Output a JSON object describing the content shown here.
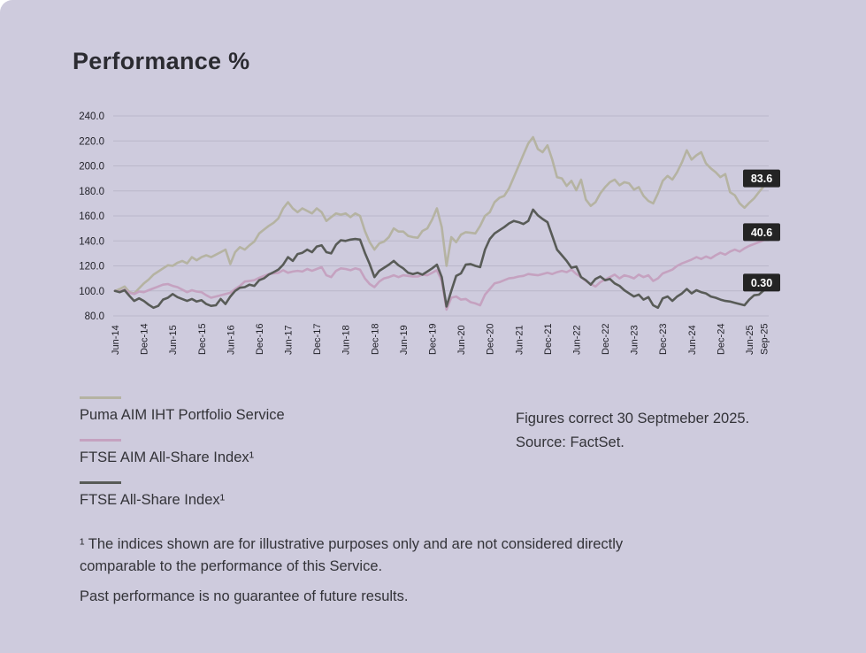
{
  "title": "Performance %",
  "notes": {
    "line1": "Figures correct 30 Septmeber 2025.",
    "line2": "Source: FactSet."
  },
  "footnotes": {
    "indices": "¹ The indices shown are for illustrative purposes only and are not considered directly comparable to the performance of this Service.",
    "past": "Past performance is no guarantee of future results."
  },
  "colors": {
    "background": "#cecbdd",
    "gridline": "#bab7ca",
    "axis_text": "#1f1f26",
    "end_label_bg": "#242424",
    "end_label_text": "#ffffff"
  },
  "chart_data": {
    "type": "line",
    "title": "Performance %",
    "grid": true,
    "legend_position": "below-left",
    "ylim": [
      80,
      240
    ],
    "y_ticks": [
      240,
      220,
      200,
      180,
      160,
      140,
      120,
      100,
      80
    ],
    "y_tick_labels": [
      "240.0",
      "220.0",
      "200.0",
      "180.0",
      "160.0",
      "140.0",
      "120.0",
      "100.0",
      "80.0"
    ],
    "x_start": "Jun-14",
    "x_end": "Sep-25",
    "x_ticks": [
      {
        "label": "Jun-14",
        "m": 0
      },
      {
        "label": "Dec-14",
        "m": 6
      },
      {
        "label": "Jun-15",
        "m": 12
      },
      {
        "label": "Dec-15",
        "m": 18
      },
      {
        "label": "Jun-16",
        "m": 24
      },
      {
        "label": "Dec-16",
        "m": 30
      },
      {
        "label": "Jun-17",
        "m": 36
      },
      {
        "label": "Dec-17",
        "m": 42
      },
      {
        "label": "Jun-18",
        "m": 48
      },
      {
        "label": "Dec-18",
        "m": 54
      },
      {
        "label": "Jun-19",
        "m": 60
      },
      {
        "label": "Dec-19",
        "m": 66
      },
      {
        "label": "Jun-20",
        "m": 72
      },
      {
        "label": "Dec-20",
        "m": 78
      },
      {
        "label": "Jun-21",
        "m": 84
      },
      {
        "label": "Dec-21",
        "m": 90
      },
      {
        "label": "Jun-22",
        "m": 96
      },
      {
        "label": "Dec-22",
        "m": 102
      },
      {
        "label": "Jun-23",
        "m": 108
      },
      {
        "label": "Dec-23",
        "m": 114
      },
      {
        "label": "Jun-24",
        "m": 120
      },
      {
        "label": "Dec-24",
        "m": 126
      },
      {
        "label": "Jun-25",
        "m": 132
      },
      {
        "label": "Sep-25",
        "m": 135
      }
    ],
    "series": [
      {
        "name": "Puma AIM IHT Portfolio Service",
        "color": "#b5b3a2",
        "end_label": "83.6",
        "values": [
          100,
          101.5,
          103.5,
          99,
          98,
          102,
          106,
          109,
          113,
          115.5,
          118,
          120.5,
          120,
          122.5,
          124,
          122,
          127,
          124.5,
          127,
          128.5,
          127,
          129,
          131,
          133,
          121.5,
          131,
          135,
          133,
          136.5,
          139.5,
          146,
          149,
          152,
          154.5,
          158,
          166,
          171,
          166,
          163,
          166,
          164,
          162,
          166,
          163,
          156,
          159,
          162,
          161,
          162,
          159,
          162,
          160,
          148,
          139,
          133,
          138,
          139.5,
          143,
          150,
          147.5,
          147.5,
          144,
          143,
          142.5,
          148,
          150,
          157,
          166,
          151,
          120,
          143,
          139,
          145,
          147,
          146.5,
          146,
          152,
          160,
          163,
          171,
          174.5,
          176,
          182,
          191,
          200,
          209,
          218,
          223,
          213.5,
          211,
          216.5,
          205,
          191,
          190,
          184,
          188,
          180.5,
          189,
          173,
          168,
          171,
          178,
          183,
          187,
          189,
          184.5,
          187,
          186,
          181,
          183,
          176,
          172,
          170,
          178,
          188,
          192,
          189,
          195,
          203,
          212.5,
          205,
          208.5,
          211,
          202,
          198,
          195,
          191,
          193.5,
          179,
          176.5,
          170,
          166.5,
          170.5,
          174,
          179,
          183.6
        ]
      },
      {
        "name": "FTSE AIM All-Share Index¹",
        "color": "#c5a2c0",
        "end_label": "40.6",
        "values": [
          100,
          99.5,
          101,
          98.5,
          97.5,
          99.5,
          99,
          100.5,
          102,
          103.5,
          105,
          105.5,
          104,
          103,
          101,
          99,
          100.5,
          99.5,
          99,
          96.5,
          94.5,
          95.5,
          96.5,
          97.5,
          98.5,
          101.5,
          104,
          107.5,
          108,
          108.5,
          110.5,
          112,
          113.5,
          114,
          114.5,
          116.5,
          114.5,
          115.5,
          116,
          115.5,
          117.5,
          116,
          117.5,
          119,
          112.5,
          111,
          116,
          118,
          117.5,
          116.5,
          118,
          117,
          110,
          105.5,
          103,
          107.5,
          110,
          111,
          112.5,
          111,
          112.5,
          112,
          111.5,
          111.5,
          113,
          112.5,
          114.5,
          116.5,
          108,
          85,
          94.5,
          95.5,
          93,
          93.5,
          91,
          90,
          88.5,
          97,
          101.5,
          106,
          107,
          108.5,
          110,
          110.5,
          111.5,
          112,
          113.5,
          113,
          112.5,
          113.5,
          114.5,
          113.5,
          115,
          116,
          115,
          117,
          113.5,
          111,
          108,
          105.5,
          103.5,
          107,
          109,
          111,
          113,
          110,
          112.5,
          111.5,
          110,
          113,
          111,
          112.5,
          108,
          110,
          114,
          115.5,
          117,
          120,
          122,
          123.5,
          125,
          127,
          125.5,
          127.5,
          126,
          128.5,
          130.5,
          129,
          131.5,
          133,
          131.5,
          134,
          136,
          137.5,
          139,
          140.6
        ]
      },
      {
        "name": "FTSE All-Share Index¹",
        "color": "#585b57",
        "end_label": "0.30",
        "values": [
          100,
          99,
          100.5,
          96,
          92,
          94,
          92,
          89,
          86.5,
          88,
          93,
          94.5,
          97.5,
          95,
          93.5,
          92,
          93.5,
          91.5,
          92.5,
          89.5,
          88,
          88.5,
          93.5,
          89.5,
          95.5,
          100,
          102.5,
          103,
          105,
          104,
          108.5,
          110,
          113,
          115,
          117,
          121,
          127,
          124,
          129.5,
          130.5,
          133,
          131,
          135.5,
          136.5,
          131,
          130,
          137,
          140.5,
          140,
          141,
          141.5,
          141,
          130.5,
          121.5,
          111,
          116,
          118.5,
          121,
          124,
          120.5,
          118,
          114.5,
          113.5,
          114.5,
          113,
          115.5,
          118,
          121,
          111,
          87.5,
          100,
          112,
          114,
          121,
          121.5,
          120,
          119,
          133,
          141.5,
          146,
          148.5,
          151,
          154,
          156,
          155,
          153.5,
          156,
          165,
          160.5,
          157.5,
          155,
          144,
          133,
          128.5,
          124,
          118.5,
          119.5,
          111,
          108.5,
          105,
          109.5,
          111.5,
          108.5,
          109.5,
          106,
          104,
          100.5,
          98,
          95.5,
          97,
          93,
          95,
          88.5,
          86.5,
          94,
          95.5,
          92,
          95.5,
          98,
          101.5,
          98,
          100.5,
          99,
          98,
          95.5,
          94.5,
          93,
          92,
          91.5,
          90.5,
          89.5,
          88.5,
          93,
          96.5,
          97,
          100.3
        ]
      }
    ]
  }
}
